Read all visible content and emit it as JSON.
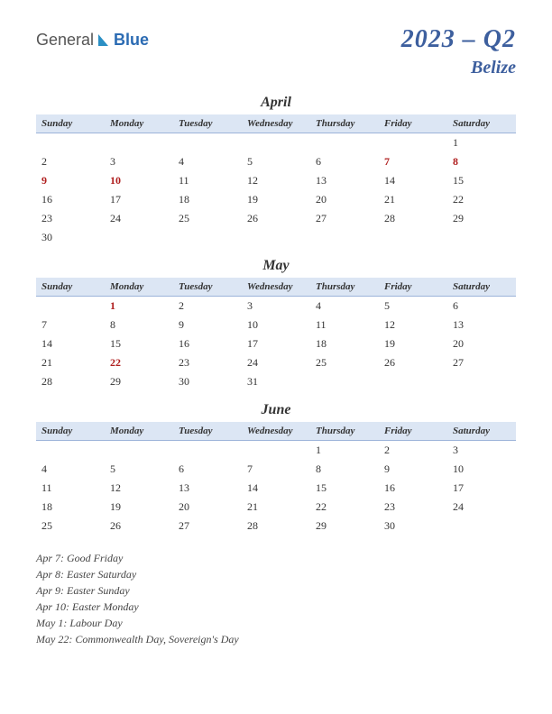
{
  "logo": {
    "text1": "General",
    "text2": "Blue",
    "icon_color": "#2b8fc4"
  },
  "title": {
    "main": "2023 – Q2",
    "sub": "Belize"
  },
  "weekdays": [
    "Sunday",
    "Monday",
    "Tuesday",
    "Wednesday",
    "Thursday",
    "Friday",
    "Saturday"
  ],
  "header_bg": "#dce6f4",
  "header_border": "#9cb3d9",
  "holiday_color": "#b02020",
  "months": {
    "april": {
      "name": "April",
      "rows": [
        [
          {
            "d": ""
          },
          {
            "d": ""
          },
          {
            "d": ""
          },
          {
            "d": ""
          },
          {
            "d": ""
          },
          {
            "d": ""
          },
          {
            "d": "1"
          }
        ],
        [
          {
            "d": "2"
          },
          {
            "d": "3"
          },
          {
            "d": "4"
          },
          {
            "d": "5"
          },
          {
            "d": "6"
          },
          {
            "d": "7",
            "h": true
          },
          {
            "d": "8",
            "h": true
          }
        ],
        [
          {
            "d": "9",
            "h": true
          },
          {
            "d": "10",
            "h": true
          },
          {
            "d": "11"
          },
          {
            "d": "12"
          },
          {
            "d": "13"
          },
          {
            "d": "14"
          },
          {
            "d": "15"
          }
        ],
        [
          {
            "d": "16"
          },
          {
            "d": "17"
          },
          {
            "d": "18"
          },
          {
            "d": "19"
          },
          {
            "d": "20"
          },
          {
            "d": "21"
          },
          {
            "d": "22"
          }
        ],
        [
          {
            "d": "23"
          },
          {
            "d": "24"
          },
          {
            "d": "25"
          },
          {
            "d": "26"
          },
          {
            "d": "27"
          },
          {
            "d": "28"
          },
          {
            "d": "29"
          }
        ],
        [
          {
            "d": "30"
          },
          {
            "d": ""
          },
          {
            "d": ""
          },
          {
            "d": ""
          },
          {
            "d": ""
          },
          {
            "d": ""
          },
          {
            "d": ""
          }
        ]
      ]
    },
    "may": {
      "name": "May",
      "rows": [
        [
          {
            "d": ""
          },
          {
            "d": "1",
            "h": true
          },
          {
            "d": "2"
          },
          {
            "d": "3"
          },
          {
            "d": "4"
          },
          {
            "d": "5"
          },
          {
            "d": "6"
          }
        ],
        [
          {
            "d": "7"
          },
          {
            "d": "8"
          },
          {
            "d": "9"
          },
          {
            "d": "10"
          },
          {
            "d": "11"
          },
          {
            "d": "12"
          },
          {
            "d": "13"
          }
        ],
        [
          {
            "d": "14"
          },
          {
            "d": "15"
          },
          {
            "d": "16"
          },
          {
            "d": "17"
          },
          {
            "d": "18"
          },
          {
            "d": "19"
          },
          {
            "d": "20"
          }
        ],
        [
          {
            "d": "21"
          },
          {
            "d": "22",
            "h": true
          },
          {
            "d": "23"
          },
          {
            "d": "24"
          },
          {
            "d": "25"
          },
          {
            "d": "26"
          },
          {
            "d": "27"
          }
        ],
        [
          {
            "d": "28"
          },
          {
            "d": "29"
          },
          {
            "d": "30"
          },
          {
            "d": "31"
          },
          {
            "d": ""
          },
          {
            "d": ""
          },
          {
            "d": ""
          }
        ]
      ]
    },
    "june": {
      "name": "June",
      "rows": [
        [
          {
            "d": ""
          },
          {
            "d": ""
          },
          {
            "d": ""
          },
          {
            "d": ""
          },
          {
            "d": "1"
          },
          {
            "d": "2"
          },
          {
            "d": "3"
          }
        ],
        [
          {
            "d": "4"
          },
          {
            "d": "5"
          },
          {
            "d": "6"
          },
          {
            "d": "7"
          },
          {
            "d": "8"
          },
          {
            "d": "9"
          },
          {
            "d": "10"
          }
        ],
        [
          {
            "d": "11"
          },
          {
            "d": "12"
          },
          {
            "d": "13"
          },
          {
            "d": "14"
          },
          {
            "d": "15"
          },
          {
            "d": "16"
          },
          {
            "d": "17"
          }
        ],
        [
          {
            "d": "18"
          },
          {
            "d": "19"
          },
          {
            "d": "20"
          },
          {
            "d": "21"
          },
          {
            "d": "22"
          },
          {
            "d": "23"
          },
          {
            "d": "24"
          }
        ],
        [
          {
            "d": "25"
          },
          {
            "d": "26"
          },
          {
            "d": "27"
          },
          {
            "d": "28"
          },
          {
            "d": "29"
          },
          {
            "d": "30"
          },
          {
            "d": ""
          }
        ]
      ]
    }
  },
  "holidays_list": [
    "Apr 7: Good Friday",
    "Apr 8: Easter Saturday",
    "Apr 9: Easter Sunday",
    "Apr 10: Easter Monday",
    "May 1: Labour Day",
    "May 22: Commonwealth Day, Sovereign's Day"
  ]
}
